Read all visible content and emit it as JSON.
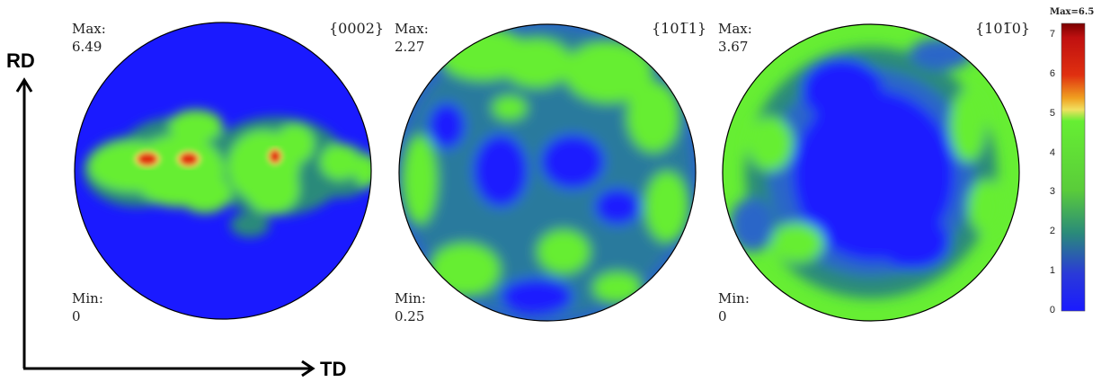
{
  "axes": {
    "vertical_label": "RD",
    "horizontal_label": "TD"
  },
  "colorbar": {
    "max_label": "Max=6.5",
    "ticks": [
      "0",
      "1",
      "2",
      "3",
      "4",
      "5",
      "6",
      "7"
    ],
    "range": [
      0,
      7.3
    ],
    "max_value": 6.5
  },
  "figures": [
    {
      "plane": "{0002}",
      "max_label": "Max:",
      "max_value": "6.49",
      "min_label": "Min:",
      "min_value": "0"
    },
    {
      "plane": "{101̅1}",
      "max_label": "Max:",
      "max_value": "2.27",
      "min_label": "Min:",
      "min_value": "0.25"
    },
    {
      "plane": "{101̅0}",
      "max_label": "Max:",
      "max_value": "3.67",
      "min_label": "Min:",
      "min_value": "0"
    }
  ],
  "chart_data": {
    "type": "heatmap",
    "title": "",
    "panels": [
      {
        "name": "{0002}",
        "max": 6.49,
        "min": 0
      },
      {
        "name": "{101̅1}",
        "max": 2.27,
        "min": 0.25
      },
      {
        "name": "{101̅0}",
        "max": 3.67,
        "min": 0
      }
    ],
    "color_scale": {
      "min": 0,
      "max": 7,
      "colors": [
        "#1a1aff",
        "#2a8a7a",
        "#66ee33",
        "#f0e060",
        "#e03010",
        "#7a0000"
      ]
    }
  }
}
